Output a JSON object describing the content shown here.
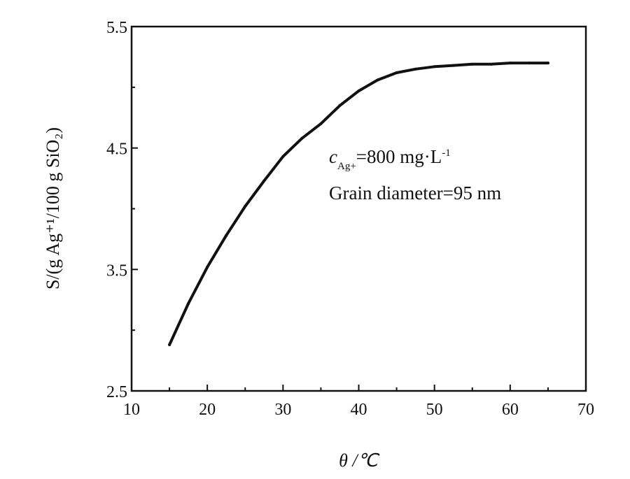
{
  "chart_data": {
    "type": "line",
    "title": "",
    "xlabel": "θ /℃",
    "ylabel": "S/(g Ag⁺¹/100 g SiO₂)",
    "xlim": [
      10,
      70
    ],
    "ylim": [
      2.5,
      5.5
    ],
    "xticks": [
      10,
      20,
      30,
      40,
      50,
      60,
      70
    ],
    "yticks": [
      2.5,
      3.5,
      4.5,
      5.5
    ],
    "grid": false,
    "series": [
      {
        "x": [
          15,
          17.5,
          20,
          22.5,
          25,
          27.5,
          30,
          32.5,
          35,
          37.5,
          40,
          42.5,
          45,
          47.5,
          50,
          52.5,
          55,
          57.5,
          60,
          62.5,
          65
        ],
        "y": [
          2.88,
          3.22,
          3.52,
          3.78,
          4.02,
          4.23,
          4.43,
          4.58,
          4.7,
          4.85,
          4.97,
          5.06,
          5.12,
          5.15,
          5.17,
          5.18,
          5.19,
          5.19,
          5.2,
          5.2,
          5.2
        ]
      }
    ],
    "annotations": {
      "conc_main": "c",
      "conc_sub": "Ag+",
      "conc_value": "=800 mg·L",
      "conc_exp": "-1",
      "grain": "Grain diameter=95 nm"
    },
    "colors": {
      "line": "#111111",
      "axis": "#111111"
    }
  }
}
